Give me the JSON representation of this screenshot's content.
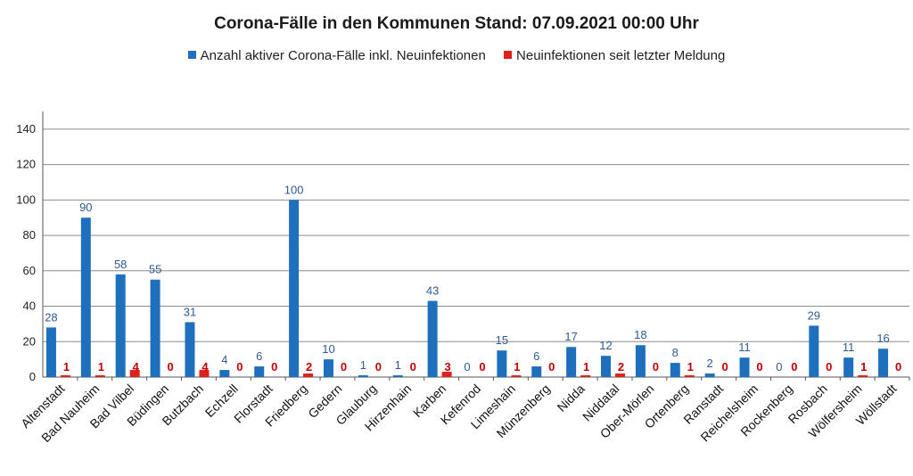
{
  "chart_data": {
    "type": "bar",
    "title": "Corona-Fälle in den Kommunen Stand: 07.09.2021 00:00 Uhr",
    "xlabel": "",
    "ylabel": "",
    "ylim": [
      0,
      150
    ],
    "yticks": [
      0,
      20,
      40,
      60,
      80,
      100,
      120,
      140
    ],
    "grid": true,
    "legend_position": "top",
    "categories": [
      "Altenstadt",
      "Bad Nauheim",
      "Bad Vilbel",
      "Büdingen",
      "Butzbach",
      "Echzell",
      "Florstadt",
      "Friedberg",
      "Gedern",
      "Glauburg",
      "Hirzenhain",
      "Karben",
      "Kefenrod",
      "Limeshain",
      "Münzenberg",
      "Nidda",
      "Niddatal",
      "Ober-Mörlen",
      "Ortenberg",
      "Ranstadt",
      "Reichelsheim",
      "Rockenberg",
      "Rosbach",
      "Wölfersheim",
      "Wöllstadt"
    ],
    "series": [
      {
        "name": "Anzahl aktiver Corona-Fälle inkl. Neuinfektionen",
        "color": "#1f6fbf",
        "values": [
          28,
          90,
          58,
          55,
          31,
          4,
          6,
          100,
          10,
          1,
          1,
          43,
          0,
          15,
          6,
          17,
          12,
          18,
          8,
          2,
          11,
          0,
          29,
          11,
          16
        ]
      },
      {
        "name": "Neuinfektionen seit letzter Meldung",
        "color": "#e0201b",
        "values": [
          1,
          1,
          4,
          0,
          4,
          0,
          0,
          2,
          0,
          0,
          0,
          3,
          0,
          1,
          0,
          1,
          2,
          0,
          1,
          0,
          0,
          0,
          0,
          1,
          0
        ]
      }
    ]
  }
}
